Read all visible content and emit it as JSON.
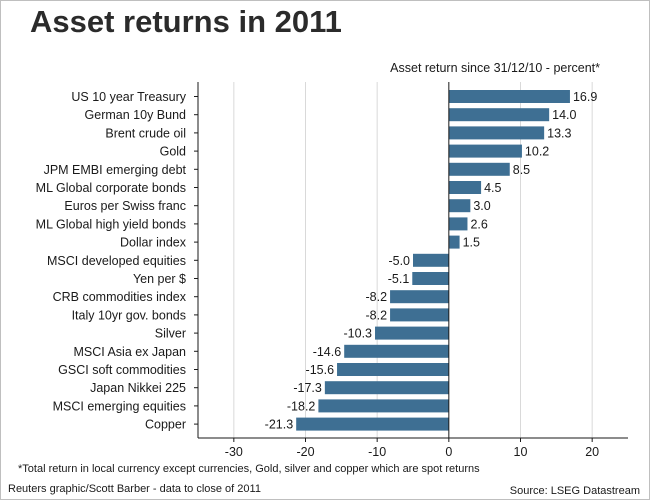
{
  "title": "Asset returns in 2011",
  "subtitle": "Asset return since 31/12/10 - percent*",
  "footnote": "*Total return in local currency except currencies, Gold, silver and copper which are spot returns",
  "credit": "Reuters graphic/Scott Barber - data to close of 2011",
  "source": "Source: LSEG Datastream",
  "colors": {
    "bar": "#3e6f93",
    "grid": "#d9d9d9",
    "axis": "#1a1a1a"
  },
  "chart_data": {
    "type": "bar",
    "orientation": "horizontal",
    "title": "Asset returns in 2011",
    "subtitle": "Asset return since 31/12/10 - percent*",
    "xlabel": "",
    "ylabel": "",
    "xlim": [
      -35,
      25
    ],
    "xticks": [
      -30,
      -20,
      -10,
      0,
      10,
      20
    ],
    "grid": true,
    "categories": [
      "US 10 year Treasury",
      "German 10y Bund",
      "Brent crude oil",
      "Gold",
      "JPM EMBI emerging debt",
      "ML Global corporate bonds",
      "Euros per Swiss franc",
      "ML Global high yield bonds",
      "Dollar index",
      "MSCI developed equities",
      "Yen per $",
      "CRB commodities index",
      "Italy 10yr gov. bonds",
      "Silver",
      "MSCI Asia ex Japan",
      "GSCI soft commodities",
      "Japan Nikkei 225",
      "MSCI emerging equities",
      "Copper"
    ],
    "values": [
      16.9,
      14.0,
      13.3,
      10.2,
      8.5,
      4.5,
      3.0,
      2.6,
      1.5,
      -5.0,
      -5.1,
      -8.2,
      -8.2,
      -10.3,
      -14.6,
      -15.6,
      -17.3,
      -18.2,
      -21.3
    ],
    "value_labels": [
      "16.9",
      "14.0",
      "13.3",
      "10.2",
      "8.5",
      "4.5",
      "3.0",
      "2.6",
      "1.5",
      "-5.0",
      "-5.1",
      "-8.2",
      "-8.2",
      "-10.3",
      "-14.6",
      "-15.6",
      "-17.3",
      "-18.2",
      "-21.3"
    ]
  }
}
